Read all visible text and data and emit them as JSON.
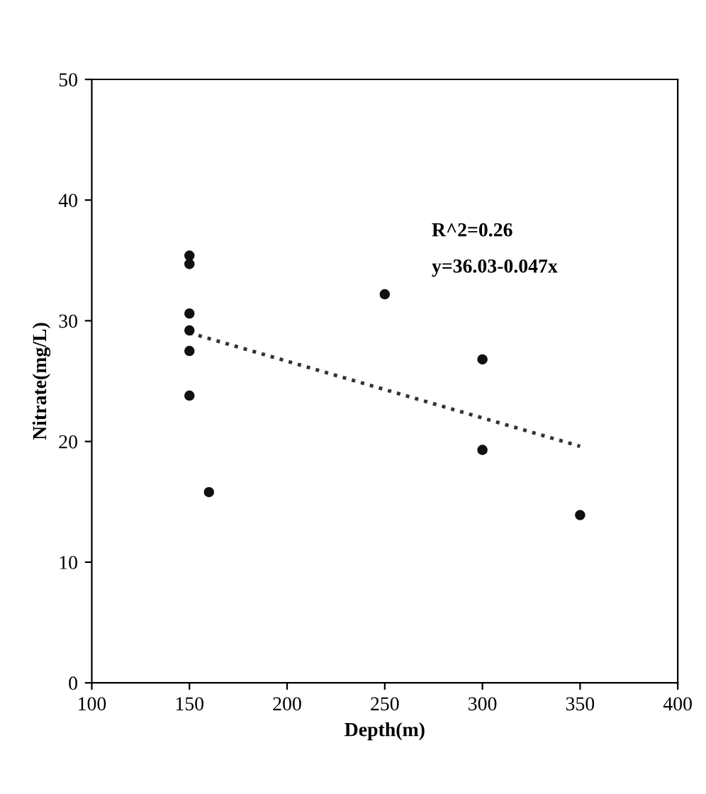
{
  "chart_data": {
    "type": "scatter",
    "xlabel": "Depth(m)",
    "ylabel": "Nitrate(mg/L)",
    "xlim": [
      100,
      400
    ],
    "xticks": [
      100,
      150,
      200,
      250,
      300,
      350,
      400
    ],
    "ylim": [
      0,
      50
    ],
    "yticks": [
      0,
      10,
      20,
      30,
      40,
      50
    ],
    "grid": false,
    "legend": false,
    "series": [
      {
        "marker": "circle",
        "color": "#111111",
        "x": [
          150,
          150,
          150,
          150,
          150,
          150,
          160,
          250,
          300,
          300,
          350
        ],
        "values": [
          35.4,
          34.7,
          30.6,
          29.2,
          27.5,
          23.8,
          15.8,
          32.2,
          26.8,
          19.3,
          13.9
        ]
      },
      {
        "type": "line",
        "marker": "none",
        "color": "#333333",
        "line_style": "dotted",
        "x": [
          150,
          350
        ],
        "values": [
          29,
          19.6
        ]
      }
    ],
    "annotations": [
      "R^2=0.26",
      "y=36.03-0.047x"
    ]
  }
}
